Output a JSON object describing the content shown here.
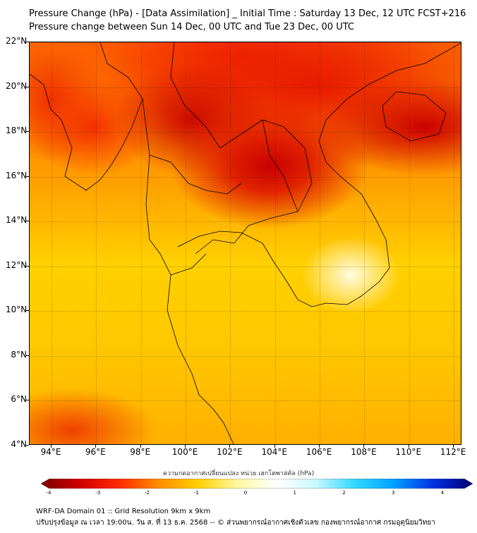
{
  "title": {
    "line1": "Pressure Change (hPa) - [Data Assimilation] _ Initial Time : Saturday 13 Dec, 12 UTC FCST+216",
    "line2": "Pressure change between Sun 14 Dec, 00 UTC and Tue 23 Dec, 00 UTC"
  },
  "map": {
    "lat_labels": [
      "22°N",
      "20°N",
      "18°N",
      "16°N",
      "14°N",
      "12°N",
      "10°N",
      "8°N",
      "6°N",
      "4°N"
    ],
    "lon_labels": [
      "94°E",
      "96°E",
      "98°E",
      "100°E",
      "102°E",
      "104°E",
      "106°E",
      "108°E",
      "110°E",
      "112°E"
    ],
    "lat_range": [
      4,
      22
    ],
    "lon_range": [
      93,
      112.4
    ]
  },
  "colorbar": {
    "label": "ความกดอากาศเปลี่ยนแปลง หน่วย เฮกโตพาสคัล (hPa)",
    "ticks": [
      "-4",
      "-3",
      "-2",
      "-1",
      "0",
      "1",
      "2",
      "3",
      "4"
    ],
    "range": [
      -4,
      4
    ],
    "colors": [
      "#7a0000",
      "#d00000",
      "#ff2a00",
      "#ff8c00",
      "#ffd000",
      "#fff8a0",
      "#ffffff",
      "#c8f8ff",
      "#30d8ff",
      "#00a0ff",
      "#0030e0",
      "#000070"
    ]
  },
  "footer": {
    "line1": "WRF-DA Domain 01 :: Grid Resolution 9km x 9km",
    "line2": "ปรับปรุงข้อมูล ณ เวลา 19:00น. วัน ส. ที่ 13 ธ.ค. 2568 -- © ส่วนพยากรณ์อากาศเชิงตัวเลข กองพยากรณ์อากาศ กรมอุตุนิยมวิทยา"
  }
}
